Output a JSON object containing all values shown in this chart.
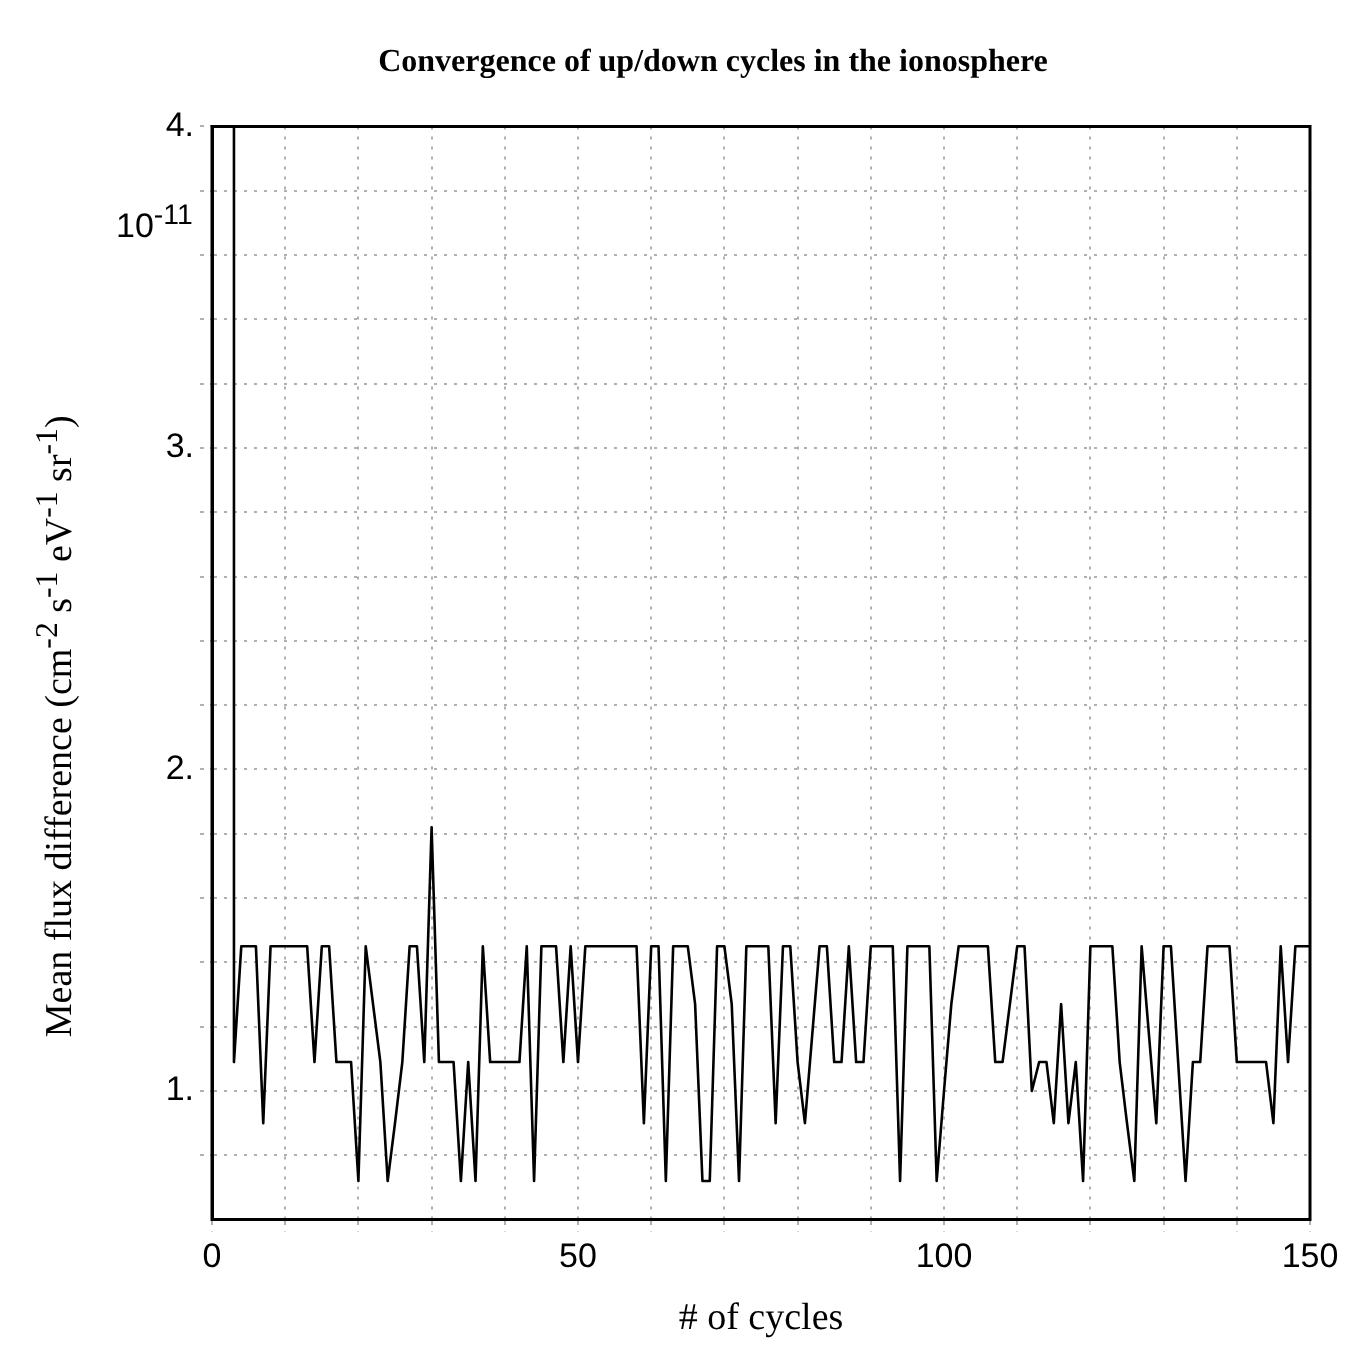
{
  "chart_data": {
    "type": "line",
    "title": "Convergence of up/down cycles in the ionosphere",
    "xlabel": "# of cycles",
    "ylabel": "Mean flux difference (cm$^{-2}$ s$^{-1}$ eV$^{-1}$ sr$^{-1}$)",
    "annotations": [
      "10$^{-11}$"
    ],
    "series": [
      {
        "color": "#000000",
        "x": [
          3,
          3,
          4,
          6,
          7,
          8,
          13,
          14,
          15,
          16,
          17,
          19,
          20,
          21,
          22,
          23,
          24,
          25,
          26,
          27,
          28,
          29,
          30,
          31,
          33,
          34,
          35,
          36,
          37,
          38,
          42,
          43,
          44,
          45,
          47,
          48,
          49,
          50,
          51,
          58,
          59,
          60,
          61,
          62,
          63,
          65,
          66,
          67,
          68,
          69,
          70,
          71,
          72,
          73,
          76,
          77,
          78,
          79,
          80,
          81,
          83,
          84,
          85,
          86,
          87,
          88,
          89,
          90,
          93,
          94,
          95,
          98,
          99,
          100,
          101,
          102,
          106,
          107,
          108,
          110,
          111,
          112,
          113,
          114,
          115,
          116,
          117,
          118,
          119,
          120,
          123,
          124,
          125,
          126,
          127,
          129,
          130,
          131,
          133,
          134,
          135,
          136,
          139,
          140,
          144,
          145,
          146,
          147,
          148,
          150
        ],
        "values": [
          4.0,
          1.09,
          1.45,
          1.45,
          0.9,
          1.45,
          1.45,
          1.09,
          1.45,
          1.45,
          1.09,
          1.09,
          0.72,
          1.45,
          1.27,
          1.09,
          0.72,
          0.9,
          1.09,
          1.45,
          1.45,
          1.09,
          1.82,
          1.09,
          1.09,
          0.72,
          1.09,
          0.72,
          1.45,
          1.09,
          1.09,
          1.45,
          0.72,
          1.45,
          1.45,
          1.09,
          1.45,
          1.09,
          1.45,
          1.45,
          0.9,
          1.45,
          1.45,
          0.72,
          1.45,
          1.45,
          1.27,
          0.72,
          0.72,
          1.45,
          1.45,
          1.27,
          0.72,
          1.45,
          1.45,
          0.9,
          1.45,
          1.45,
          1.09,
          0.9,
          1.45,
          1.45,
          1.09,
          1.09,
          1.45,
          1.09,
          1.09,
          1.45,
          1.45,
          0.72,
          1.45,
          1.45,
          0.72,
          1.0,
          1.27,
          1.45,
          1.45,
          1.09,
          1.09,
          1.45,
          1.45,
          1.0,
          1.09,
          1.09,
          0.9,
          1.27,
          0.9,
          1.09,
          0.72,
          1.45,
          1.45,
          1.09,
          0.9,
          0.72,
          1.45,
          0.9,
          1.45,
          1.45,
          0.72,
          1.09,
          1.09,
          1.45,
          1.45,
          1.09,
          1.09,
          0.9,
          1.45,
          1.09,
          1.45,
          1.45
        ]
      }
    ],
    "xlim": [
      0,
      150
    ],
    "xticks": [
      0,
      {
        "value": 10,
        "label": null
      },
      {
        "value": 20,
        "label": null
      },
      {
        "value": 30,
        "label": null
      },
      {
        "value": 40,
        "label": null
      },
      50,
      {
        "value": 60,
        "label": null
      },
      {
        "value": 70,
        "label": null
      },
      {
        "value": 80,
        "label": null
      },
      {
        "value": 90,
        "label": null
      },
      100,
      {
        "value": 110,
        "label": null
      },
      {
        "value": 120,
        "label": null
      },
      {
        "value": 130,
        "label": null
      },
      {
        "value": 140,
        "label": null
      },
      150
    ],
    "ylim": [
      0.6,
      4.0
    ],
    "yticks": [
      {
        "value": 0.8,
        "label": null
      },
      {
        "value": 1,
        "label": "1."
      },
      {
        "value": 1.2,
        "label": null
      },
      {
        "value": 1.4,
        "label": null
      },
      {
        "value": 1.6,
        "label": null
      },
      {
        "value": 1.8,
        "label": null
      },
      {
        "value": 2,
        "label": "2."
      },
      {
        "value": 2.2,
        "label": null
      },
      {
        "value": 2.4,
        "label": null
      },
      {
        "value": 2.6,
        "label": null
      },
      {
        "value": 2.8,
        "label": null
      },
      {
        "value": 3,
        "label": "3."
      },
      {
        "value": 3.2,
        "label": null
      },
      {
        "value": 3.4,
        "label": null
      },
      {
        "value": 3.6,
        "label": null
      },
      {
        "value": 3.8,
        "label": null
      },
      {
        "value": 4,
        "label": "4."
      }
    ],
    "grid": true,
    "legend": false,
    "marker": "none",
    "line_style": "solid"
  }
}
